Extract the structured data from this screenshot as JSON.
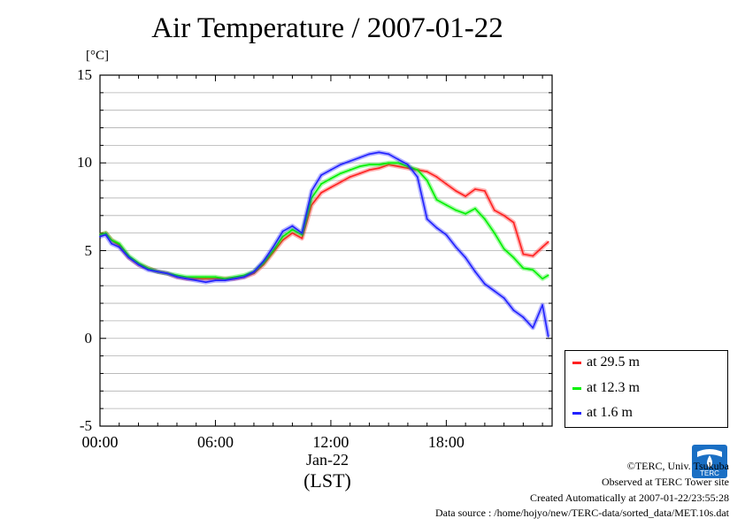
{
  "chart_data": {
    "type": "line",
    "title": "Air Temperature / 2007-01-22",
    "ylabel": "[°C]",
    "xlabel": "(LST)",
    "date_label": "Jan-22",
    "ylim": [
      -5,
      15
    ],
    "xlim": [
      0,
      23.5
    ],
    "yticks": [
      15,
      10,
      5,
      0,
      -5
    ],
    "xticks": [
      {
        "value": 0,
        "label": "00:00"
      },
      {
        "value": 6,
        "label": "06:00"
      },
      {
        "value": 12,
        "label": "12:00"
      },
      {
        "value": 18,
        "label": "18:00"
      }
    ],
    "grid": "horizontal",
    "legend_position": "right",
    "series": [
      {
        "name": "at 29.5 m",
        "color": "#ff2020",
        "x": [
          0,
          0.3,
          0.6,
          1,
          1.5,
          2,
          2.5,
          3,
          3.5,
          4,
          4.5,
          5,
          5.5,
          6,
          6.5,
          7,
          7.5,
          8,
          8.5,
          9,
          9.5,
          10,
          10.5,
          11,
          11.5,
          12,
          12.5,
          13,
          13.5,
          14,
          14.5,
          15,
          15.5,
          16,
          16.5,
          17,
          17.5,
          18,
          18.5,
          19,
          19.5,
          20,
          20.5,
          21,
          21.5,
          22,
          22.5,
          23,
          23.3
        ],
        "values": [
          5.9,
          6.0,
          5.6,
          5.3,
          4.6,
          4.2,
          4.0,
          3.8,
          3.7,
          3.5,
          3.4,
          3.4,
          3.4,
          3.4,
          3.4,
          3.4,
          3.5,
          3.7,
          4.2,
          4.9,
          5.6,
          6.0,
          5.7,
          7.6,
          8.3,
          8.6,
          8.9,
          9.2,
          9.4,
          9.6,
          9.7,
          9.9,
          9.8,
          9.7,
          9.6,
          9.5,
          9.2,
          8.8,
          8.4,
          8.1,
          8.5,
          8.4,
          7.3,
          7.0,
          6.6,
          4.8,
          4.7,
          5.2,
          5.5
        ]
      },
      {
        "name": "at 12.3 m",
        "color": "#00f000",
        "x": [
          0,
          0.3,
          0.6,
          1,
          1.5,
          2,
          2.5,
          3,
          3.5,
          4,
          4.5,
          5,
          5.5,
          6,
          6.5,
          7,
          7.5,
          8,
          8.5,
          9,
          9.5,
          10,
          10.5,
          11,
          11.5,
          12,
          12.5,
          13,
          13.5,
          14,
          14.5,
          15,
          15.5,
          16,
          16.5,
          17,
          17.5,
          18,
          18.5,
          19,
          19.5,
          20,
          20.5,
          21,
          21.5,
          22,
          22.5,
          23,
          23.3
        ],
        "values": [
          5.9,
          6.0,
          5.6,
          5.4,
          4.7,
          4.3,
          4.0,
          3.8,
          3.7,
          3.6,
          3.5,
          3.5,
          3.5,
          3.5,
          3.4,
          3.5,
          3.6,
          3.8,
          4.3,
          5.0,
          5.8,
          6.2,
          5.9,
          8.0,
          8.8,
          9.1,
          9.4,
          9.6,
          9.8,
          9.9,
          9.9,
          10.0,
          10.0,
          9.8,
          9.6,
          9.0,
          7.9,
          7.6,
          7.3,
          7.1,
          7.4,
          6.8,
          6.0,
          5.1,
          4.6,
          4.0,
          3.9,
          3.4,
          3.6
        ]
      },
      {
        "name": "at 1.6 m",
        "color": "#2020ff",
        "x": [
          0,
          0.3,
          0.6,
          1,
          1.5,
          2,
          2.5,
          3,
          3.5,
          4,
          4.5,
          5,
          5.5,
          6,
          6.5,
          7,
          7.5,
          8,
          8.5,
          9,
          9.5,
          10,
          10.5,
          11,
          11.5,
          12,
          12.5,
          13,
          13.5,
          14,
          14.5,
          15,
          15.5,
          16,
          16.5,
          17,
          17.5,
          18,
          18.5,
          19,
          19.5,
          20,
          20.5,
          21,
          21.5,
          22,
          22.5,
          23,
          23.3
        ],
        "values": [
          5.8,
          5.9,
          5.4,
          5.2,
          4.6,
          4.2,
          3.9,
          3.8,
          3.7,
          3.5,
          3.4,
          3.3,
          3.2,
          3.3,
          3.3,
          3.4,
          3.5,
          3.8,
          4.4,
          5.2,
          6.1,
          6.4,
          6.0,
          8.4,
          9.3,
          9.6,
          9.9,
          10.1,
          10.3,
          10.5,
          10.6,
          10.5,
          10.2,
          9.9,
          9.2,
          6.8,
          6.3,
          5.9,
          5.2,
          4.6,
          3.8,
          3.1,
          2.7,
          2.3,
          1.6,
          1.2,
          0.6,
          1.9,
          0.1
        ]
      }
    ]
  },
  "credits": {
    "line1": "©TERC, Univ. Tsukuba",
    "line2": "Observed at TERC Tower site",
    "line3": "Created Automatically at 2007-01-22/23:55:28",
    "line4": "Data source : /home/hojyo/new/TERC-data/sorted_data/MET.10s.dat"
  },
  "logo": {
    "icon": "terc-logo-icon",
    "text": "TERC",
    "color": "#1a6fc4"
  }
}
